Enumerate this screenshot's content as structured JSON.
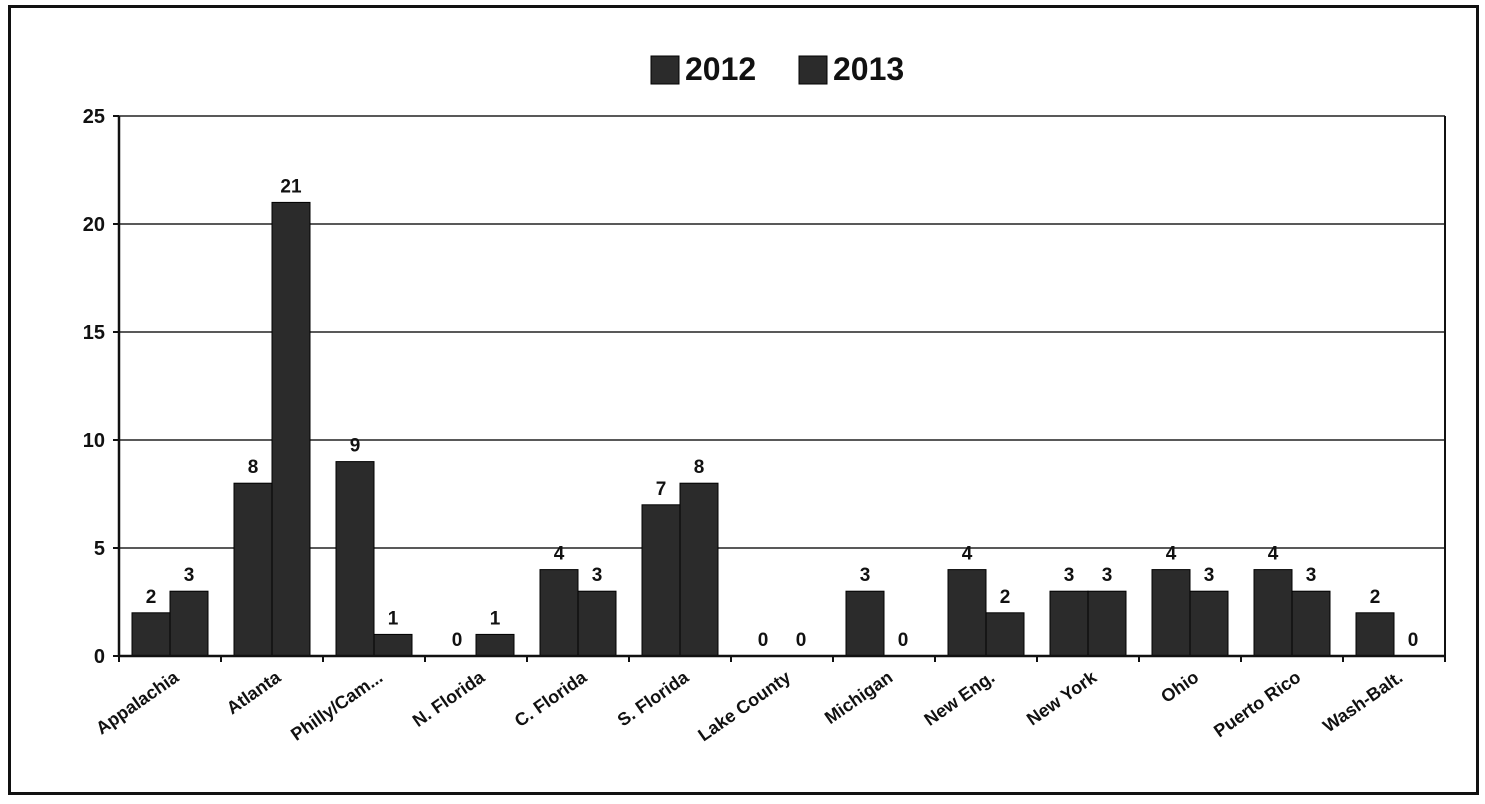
{
  "chart_data": {
    "type": "bar",
    "title": "",
    "xlabel": "",
    "ylabel": "",
    "categories": [
      "Appalachia",
      "Atlanta",
      "Philly/Cam...",
      "N. Florida",
      "C. Florida",
      "S. Florida",
      "Lake County",
      "Michigan",
      "New Eng.",
      "New York",
      "Ohio",
      "Puerto Rico",
      "Wash-Balt."
    ],
    "series": [
      {
        "name": "2012",
        "values": [
          2,
          8,
          9,
          0,
          4,
          7,
          0,
          3,
          4,
          3,
          4,
          4,
          2
        ],
        "color": "#2b2b2b"
      },
      {
        "name": "2013",
        "values": [
          3,
          21,
          1,
          1,
          3,
          8,
          0,
          0,
          2,
          3,
          3,
          3,
          0
        ],
        "color": "#2b2b2b"
      }
    ],
    "ylim": [
      0,
      25
    ],
    "yticks": [
      0,
      5,
      10,
      15,
      20,
      25
    ],
    "grid": true,
    "legend_position": "top",
    "data_labels": true
  }
}
